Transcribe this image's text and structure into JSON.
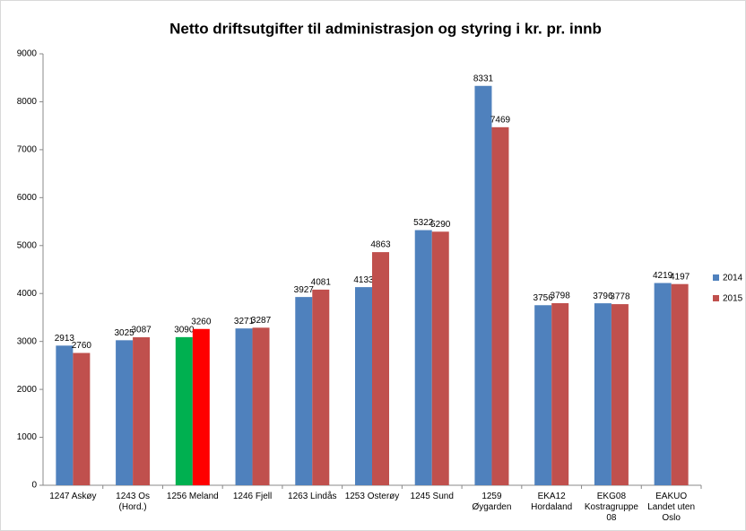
{
  "chart_data": {
    "type": "bar",
    "title": "Netto driftsutgifter til administrasjon og styring i kr. pr. innb",
    "categories": [
      "1247 Askøy",
      "1243 Os (Hord.)",
      "1256 Meland",
      "1246 Fjell",
      "1263 Lindås",
      "1253 Osterøy",
      "1245 Sund",
      "1259 Øygarden",
      "EKA12 Hordaland",
      "EKG08 Kostragruppe 08",
      "EAKUO Landet uten Oslo"
    ],
    "series": [
      {
        "name": "2014",
        "color": "#4f81bd",
        "highlight_color": "#00b050",
        "values": [
          2913,
          3025,
          3090,
          3271,
          3927,
          4133,
          5322,
          8331,
          3756,
          3796,
          4219
        ]
      },
      {
        "name": "2015",
        "color": "#c0504d",
        "highlight_color": "#ff0000",
        "values": [
          2760,
          3087,
          3260,
          3287,
          4081,
          4863,
          5290,
          7469,
          3798,
          3778,
          4197
        ]
      }
    ],
    "highlight_category": "1256 Meland",
    "ylim": [
      0,
      9000
    ],
    "yticks": [
      0,
      1000,
      2000,
      3000,
      4000,
      5000,
      6000,
      7000,
      8000,
      9000
    ],
    "grid": false,
    "legend": "right"
  }
}
